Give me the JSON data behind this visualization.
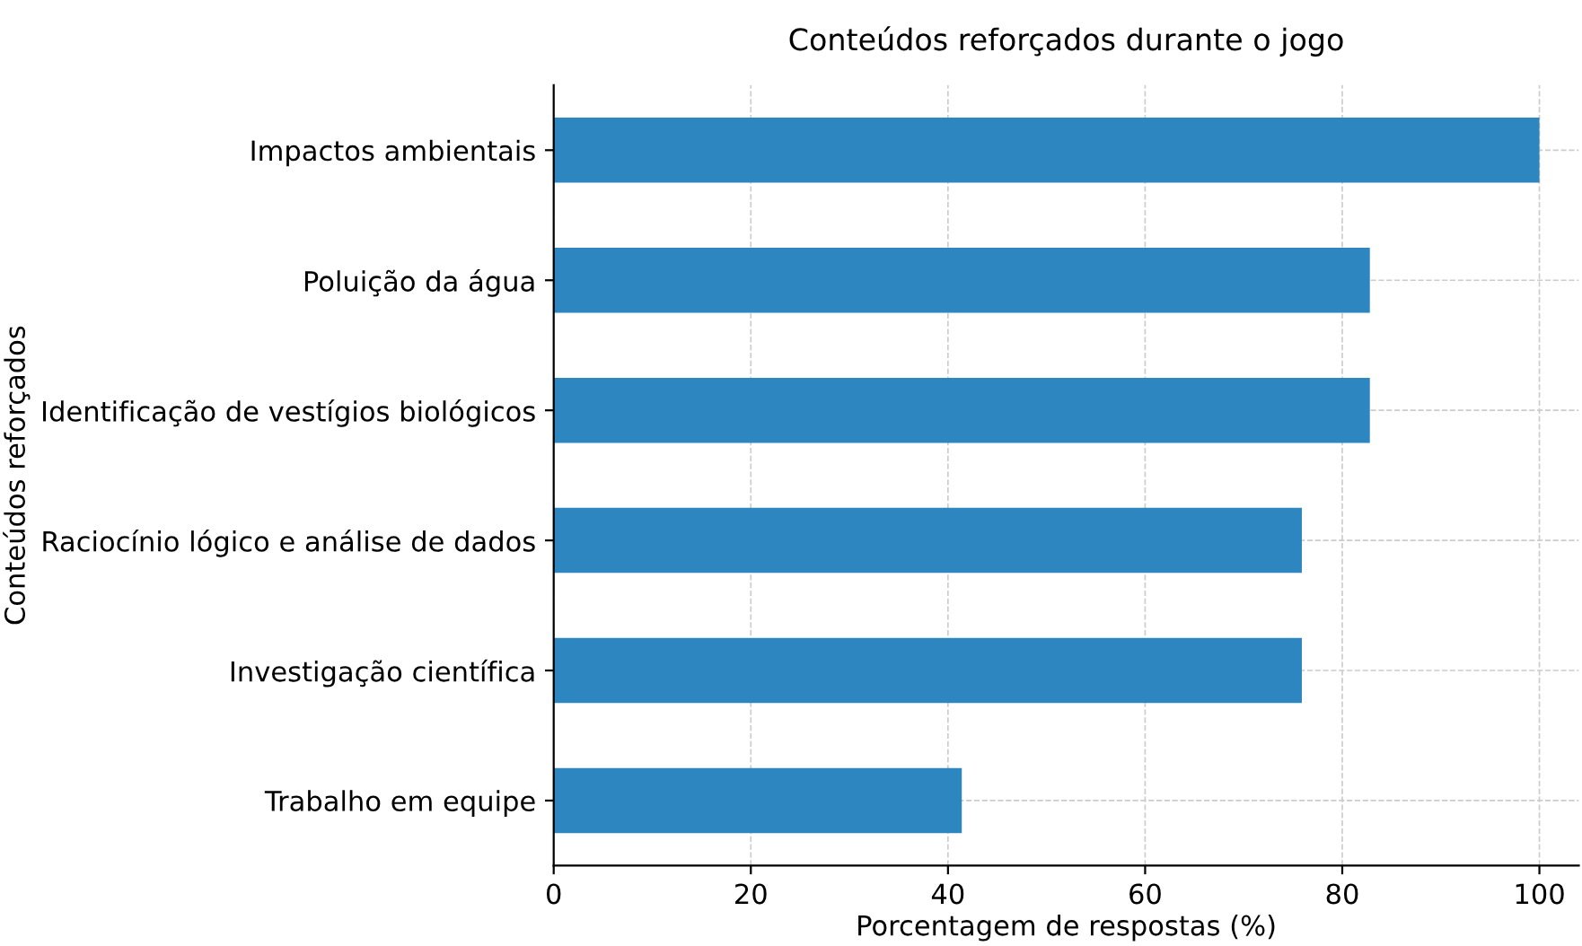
{
  "chart_data": {
    "type": "bar",
    "orientation": "horizontal",
    "title": "Conteúdos reforçados durante o jogo",
    "xlabel": "Porcentagem de respostas (%)",
    "ylabel": "Conteúdos reforçados",
    "categories": [
      "Impactos ambientais",
      "Poluição da água",
      "Identificação de vestígios biológicos",
      "Raciocínio lógico e análise de dados",
      "Investigação científica",
      "Trabalho em equipe"
    ],
    "values": [
      100,
      82.8,
      82.8,
      75.9,
      75.9,
      41.4
    ],
    "color": "#2e86c1",
    "xlim": [
      0,
      104
    ],
    "xticks": [
      0,
      20,
      40,
      60,
      80,
      100
    ],
    "grid": true
  }
}
